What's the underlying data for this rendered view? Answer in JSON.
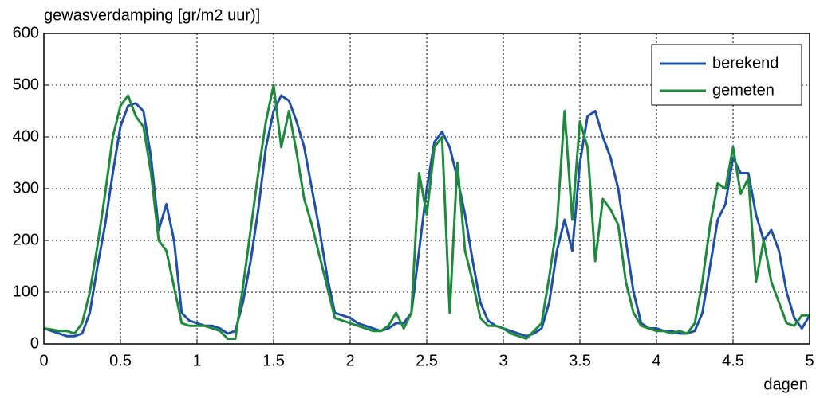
{
  "chart_data": {
    "type": "line",
    "ylabel": "gewasverdamping [gr/m2 uur)]",
    "xlabel": "dagen",
    "x": [
      0,
      0.05,
      0.1,
      0.15,
      0.2,
      0.25,
      0.3,
      0.35,
      0.4,
      0.45,
      0.5,
      0.55,
      0.6,
      0.65,
      0.7,
      0.75,
      0.8,
      0.85,
      0.9,
      0.95,
      1,
      1.05,
      1.1,
      1.15,
      1.2,
      1.25,
      1.3,
      1.35,
      1.4,
      1.45,
      1.5,
      1.55,
      1.6,
      1.65,
      1.7,
      1.75,
      1.8,
      1.85,
      1.9,
      1.95,
      2,
      2.05,
      2.1,
      2.15,
      2.2,
      2.25,
      2.3,
      2.35,
      2.4,
      2.45,
      2.5,
      2.55,
      2.6,
      2.65,
      2.7,
      2.75,
      2.8,
      2.85,
      2.9,
      2.95,
      3,
      3.05,
      3.1,
      3.15,
      3.2,
      3.25,
      3.3,
      3.35,
      3.4,
      3.45,
      3.5,
      3.55,
      3.6,
      3.65,
      3.7,
      3.75,
      3.8,
      3.85,
      3.9,
      3.95,
      4,
      4.05,
      4.1,
      4.15,
      4.2,
      4.25,
      4.3,
      4.35,
      4.4,
      4.45,
      4.5,
      4.55,
      4.6,
      4.65,
      4.7,
      4.75,
      4.8,
      4.85,
      4.9,
      4.95,
      5
    ],
    "series": [
      {
        "name": "berekend",
        "color": "#1f4fa8",
        "values": [
          30,
          25,
          20,
          15,
          15,
          20,
          60,
          150,
          230,
          330,
          420,
          460,
          465,
          450,
          360,
          220,
          270,
          200,
          60,
          45,
          40,
          35,
          35,
          30,
          20,
          25,
          80,
          160,
          260,
          380,
          450,
          480,
          470,
          430,
          380,
          300,
          220,
          130,
          60,
          55,
          50,
          40,
          35,
          30,
          25,
          30,
          40,
          40,
          60,
          180,
          300,
          390,
          410,
          380,
          320,
          250,
          160,
          80,
          45,
          35,
          30,
          25,
          20,
          15,
          20,
          30,
          80,
          180,
          240,
          180,
          350,
          440,
          450,
          400,
          360,
          300,
          200,
          100,
          40,
          30,
          30,
          25,
          25,
          20,
          20,
          25,
          60,
          150,
          240,
          270,
          360,
          330,
          330,
          250,
          200,
          220,
          180,
          100,
          50,
          30,
          55
        ]
      },
      {
        "name": "gemeten",
        "color": "#1e8a3c",
        "values": [
          30,
          28,
          25,
          25,
          20,
          40,
          100,
          190,
          290,
          400,
          460,
          480,
          440,
          420,
          330,
          200,
          180,
          110,
          40,
          35,
          35,
          35,
          30,
          25,
          10,
          10,
          110,
          220,
          330,
          430,
          500,
          380,
          450,
          370,
          280,
          230,
          170,
          110,
          50,
          45,
          40,
          35,
          30,
          25,
          25,
          35,
          60,
          30,
          60,
          330,
          250,
          380,
          400,
          60,
          350,
          180,
          120,
          50,
          35,
          35,
          30,
          20,
          15,
          10,
          25,
          40,
          130,
          230,
          450,
          240,
          430,
          380,
          160,
          280,
          260,
          230,
          120,
          60,
          35,
          30,
          25,
          25,
          20,
          25,
          20,
          40,
          120,
          230,
          310,
          300,
          380,
          290,
          320,
          120,
          200,
          120,
          80,
          40,
          35,
          55,
          55
        ]
      }
    ],
    "xlim": [
      0,
      5
    ],
    "xticks": [
      0,
      0.5,
      1,
      1.5,
      2,
      2.5,
      3,
      3.5,
      4,
      4.5,
      5
    ],
    "ylim": [
      0,
      600
    ],
    "yticks": [
      0,
      100,
      200,
      300,
      400,
      500,
      600
    ],
    "grid": true,
    "legend": "upper right"
  }
}
